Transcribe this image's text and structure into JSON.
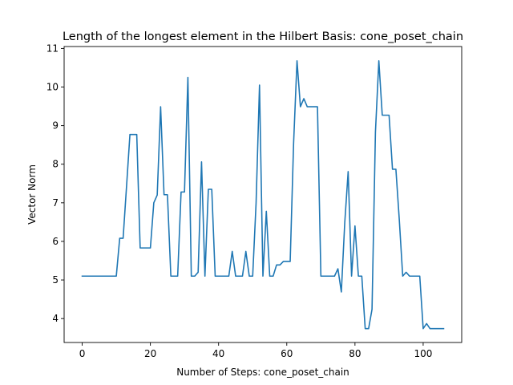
{
  "chart_data": {
    "type": "line",
    "title": "Length of the longest element in the Hilbert Basis: cone_poset_chain",
    "xlabel": "Number of Steps: cone_poset_chain",
    "ylabel": "Vector Norm",
    "xlim": [
      -5.3,
      111.3
    ],
    "ylim": [
      3.38,
      11.05
    ],
    "xticks": [
      0,
      20,
      40,
      60,
      80,
      100
    ],
    "yticks": [
      4,
      5,
      6,
      7,
      8,
      9,
      10,
      11
    ],
    "grid": false,
    "line_color": "#1f77b4",
    "series": [
      {
        "x": [
          0,
          1,
          2,
          3,
          4,
          5,
          6,
          7,
          8,
          9,
          10,
          11,
          12,
          13,
          14,
          15,
          16,
          17,
          18,
          19,
          20,
          21,
          22,
          23,
          24,
          25,
          26,
          27,
          28,
          29,
          30,
          31,
          32,
          33,
          34,
          35,
          36,
          37,
          38,
          39,
          40,
          41,
          42,
          43,
          44,
          45,
          46,
          47,
          48,
          49,
          50,
          51,
          52,
          53,
          54,
          55,
          56,
          57,
          58,
          59,
          60,
          61,
          62,
          63,
          64,
          65,
          66,
          67,
          68,
          69,
          70,
          71,
          72,
          73,
          74,
          75,
          76,
          77,
          78,
          79,
          80,
          81,
          82,
          83,
          84,
          85,
          86,
          87,
          88,
          89,
          90,
          91,
          92,
          93,
          94,
          95,
          96,
          97,
          98,
          99,
          100,
          101,
          102,
          103,
          104,
          105,
          106
        ],
        "values": [
          5.1,
          5.1,
          5.1,
          5.1,
          5.1,
          5.1,
          5.1,
          5.1,
          5.1,
          5.1,
          5.1,
          6.08,
          6.08,
          7.42,
          8.77,
          8.77,
          8.77,
          5.83,
          5.83,
          5.83,
          5.83,
          7.0,
          7.2,
          9.49,
          7.21,
          7.21,
          5.1,
          5.1,
          5.1,
          7.28,
          7.28,
          10.25,
          5.1,
          5.1,
          5.2,
          8.06,
          5.1,
          7.35,
          7.35,
          5.1,
          5.1,
          5.1,
          5.1,
          5.1,
          5.74,
          5.1,
          5.1,
          5.1,
          5.74,
          5.1,
          5.1,
          7.0,
          10.05,
          5.1,
          6.78,
          5.1,
          5.1,
          5.39,
          5.39,
          5.48,
          5.48,
          5.48,
          8.54,
          10.68,
          9.49,
          9.7,
          9.49,
          9.49,
          9.49,
          9.49,
          5.1,
          5.1,
          5.1,
          5.1,
          5.1,
          5.29,
          4.69,
          6.48,
          7.81,
          5.1,
          6.4,
          5.1,
          5.1,
          3.74,
          3.74,
          4.24,
          8.83,
          10.68,
          9.27,
          9.27,
          9.27,
          7.87,
          7.87,
          6.56,
          5.1,
          5.2,
          5.1,
          5.1,
          5.1,
          5.1,
          3.74,
          3.87,
          3.74,
          3.74,
          3.74,
          3.74,
          3.74
        ]
      }
    ]
  }
}
